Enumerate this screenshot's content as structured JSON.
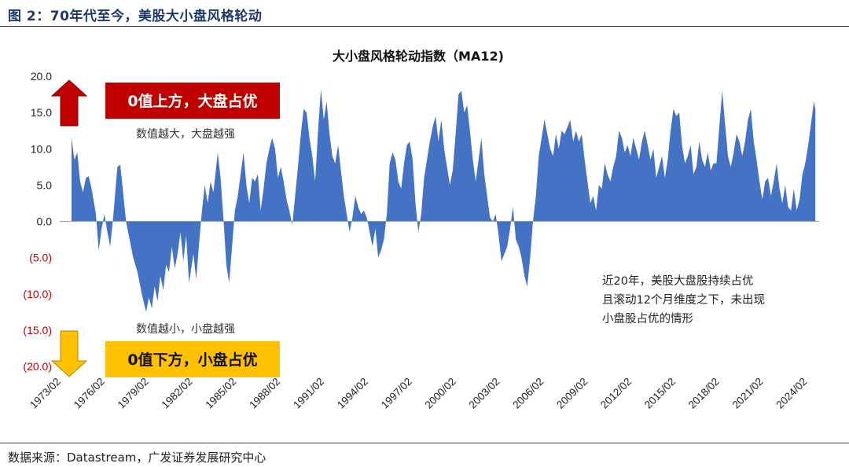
{
  "figure_title": "图 2：70年代至今，美股大小盘风格轮动",
  "source": "数据来源：Datastream，广发证券发展研究中心",
  "colors": {
    "fill": "#4472c4",
    "up_box": "#c00000",
    "down_box": "#ffc000",
    "up_arrow": "#c00000",
    "down_arrow": "#ffc000",
    "neg_tick": "#c00000"
  },
  "chart_data": {
    "type": "area",
    "title": "大小盘风格轮动指数（MA12)",
    "xlabel": "",
    "ylabel": "",
    "ylim": [
      -20,
      20
    ],
    "y_ticks": [
      "20.0",
      "15.0",
      "10.0",
      "5.0",
      "0.0",
      "(5.0)",
      "(10.0)",
      "(15.0)",
      "(20.0)"
    ],
    "x_tick_labels": [
      "1973/02",
      "1976/02",
      "1979/02",
      "1982/02",
      "1985/02",
      "1988/02",
      "1991/02",
      "1994/02",
      "1997/02",
      "2000/02",
      "2003/02",
      "2006/02",
      "2009/02",
      "2012/02",
      "2015/02",
      "2018/02",
      "2021/02",
      "2024/02"
    ],
    "x_range": [
      1973.1,
      2025.1
    ],
    "grid": false,
    "series": [
      {
        "values": [
          [
            1973.1,
            11.5
          ],
          [
            1973.3,
            8.5
          ],
          [
            1973.5,
            9.5
          ],
          [
            1973.7,
            5.5
          ],
          [
            1973.9,
            4.0
          ],
          [
            1974.1,
            6.0
          ],
          [
            1974.3,
            6.2
          ],
          [
            1974.5,
            4.5
          ],
          [
            1974.8,
            1.0
          ],
          [
            1975.0,
            -4.0
          ],
          [
            1975.2,
            -1.0
          ],
          [
            1975.4,
            1.0
          ],
          [
            1975.6,
            -1.5
          ],
          [
            1975.8,
            -3.5
          ],
          [
            1976.0,
            0.5
          ],
          [
            1976.3,
            7.5
          ],
          [
            1976.5,
            7.8
          ],
          [
            1976.7,
            4.0
          ],
          [
            1976.9,
            0.0
          ],
          [
            1977.1,
            -2.0
          ],
          [
            1977.4,
            -5.0
          ],
          [
            1977.7,
            -7.0
          ],
          [
            1978.0,
            -10.0
          ],
          [
            1978.3,
            -12.5
          ],
          [
            1978.5,
            -10.5
          ],
          [
            1978.7,
            -12.0
          ],
          [
            1978.9,
            -9.0
          ],
          [
            1979.1,
            -11.0
          ],
          [
            1979.3,
            -7.5
          ],
          [
            1979.5,
            -9.5
          ],
          [
            1979.7,
            -6.0
          ],
          [
            1979.9,
            -7.0
          ],
          [
            1980.1,
            -3.5
          ],
          [
            1980.3,
            -6.5
          ],
          [
            1980.5,
            -4.5
          ],
          [
            1980.7,
            -1.5
          ],
          [
            1980.9,
            -5.5
          ],
          [
            1981.1,
            -2.0
          ],
          [
            1981.3,
            -8.5
          ],
          [
            1981.6,
            -4.5
          ],
          [
            1981.8,
            -8.0
          ],
          [
            1982.0,
            -3.0
          ],
          [
            1982.2,
            1.5
          ],
          [
            1982.4,
            5.0
          ],
          [
            1982.6,
            2.5
          ],
          [
            1982.8,
            5.5
          ],
          [
            1983.0,
            4.0
          ],
          [
            1983.3,
            9.5
          ],
          [
            1983.5,
            6.0
          ],
          [
            1983.7,
            0.5
          ],
          [
            1983.9,
            -6.0
          ],
          [
            1984.1,
            -8.5
          ],
          [
            1984.3,
            -3.5
          ],
          [
            1984.5,
            1.5
          ],
          [
            1984.7,
            3.5
          ],
          [
            1984.9,
            6.5
          ],
          [
            1985.1,
            9.5
          ],
          [
            1985.3,
            5.0
          ],
          [
            1985.5,
            2.5
          ],
          [
            1985.7,
            6.0
          ],
          [
            1985.9,
            5.5
          ],
          [
            1986.1,
            6.5
          ],
          [
            1986.3,
            1.5
          ],
          [
            1986.5,
            4.5
          ],
          [
            1986.7,
            8.0
          ],
          [
            1986.9,
            10.0
          ],
          [
            1987.1,
            11.5
          ],
          [
            1987.3,
            10.0
          ],
          [
            1987.5,
            6.0
          ],
          [
            1987.7,
            7.5
          ],
          [
            1987.9,
            5.5
          ],
          [
            1988.1,
            3.0
          ],
          [
            1988.3,
            1.5
          ],
          [
            1988.5,
            -0.5
          ],
          [
            1988.7,
            3.5
          ],
          [
            1988.9,
            7.5
          ],
          [
            1989.1,
            12.0
          ],
          [
            1989.3,
            15.5
          ],
          [
            1989.5,
            15.0
          ],
          [
            1989.7,
            11.5
          ],
          [
            1989.9,
            9.0
          ],
          [
            1990.1,
            5.5
          ],
          [
            1990.3,
            12.5
          ],
          [
            1990.5,
            18.2
          ],
          [
            1990.7,
            14.0
          ],
          [
            1990.9,
            16.5
          ],
          [
            1991.1,
            12.0
          ],
          [
            1991.3,
            9.0
          ],
          [
            1991.5,
            8.0
          ],
          [
            1991.7,
            10.5
          ],
          [
            1991.9,
            7.0
          ],
          [
            1992.1,
            3.5
          ],
          [
            1992.3,
            1.0
          ],
          [
            1992.5,
            -1.5
          ],
          [
            1992.7,
            0.5
          ],
          [
            1992.9,
            3.5
          ],
          [
            1993.1,
            2.0
          ],
          [
            1993.3,
            1.0
          ],
          [
            1993.5,
            1.5
          ],
          [
            1993.7,
            0.5
          ],
          [
            1993.9,
            -1.5
          ],
          [
            1994.1,
            -3.5
          ],
          [
            1994.3,
            -1.0
          ],
          [
            1994.5,
            -5.0
          ],
          [
            1994.7,
            -4.0
          ],
          [
            1994.9,
            -2.5
          ],
          [
            1995.1,
            1.0
          ],
          [
            1995.3,
            8.0
          ],
          [
            1995.5,
            9.5
          ],
          [
            1995.7,
            8.5
          ],
          [
            1995.9,
            5.5
          ],
          [
            1996.1,
            4.5
          ],
          [
            1996.3,
            8.0
          ],
          [
            1996.5,
            10.5
          ],
          [
            1996.7,
            11.0
          ],
          [
            1996.9,
            8.5
          ],
          [
            1997.1,
            2.5
          ],
          [
            1997.3,
            -1.5
          ],
          [
            1997.5,
            1.0
          ],
          [
            1997.7,
            6.0
          ],
          [
            1997.9,
            8.5
          ],
          [
            1998.1,
            11.0
          ],
          [
            1998.3,
            13.0
          ],
          [
            1998.5,
            14.5
          ],
          [
            1998.7,
            11.0
          ],
          [
            1998.9,
            14.0
          ],
          [
            1999.1,
            10.0
          ],
          [
            1999.3,
            7.5
          ],
          [
            1999.5,
            5.0
          ],
          [
            1999.7,
            7.0
          ],
          [
            1999.9,
            12.0
          ],
          [
            2000.1,
            17.5
          ],
          [
            2000.3,
            18.0
          ],
          [
            2000.5,
            15.0
          ],
          [
            2000.7,
            16.0
          ],
          [
            2000.9,
            12.5
          ],
          [
            2001.1,
            8.5
          ],
          [
            2001.3,
            5.5
          ],
          [
            2001.5,
            8.5
          ],
          [
            2001.7,
            11.5
          ],
          [
            2001.9,
            6.5
          ],
          [
            2002.1,
            3.5
          ],
          [
            2002.3,
            0.5
          ],
          [
            2002.5,
            0.0
          ],
          [
            2002.7,
            1.0
          ],
          [
            2002.9,
            -2.0
          ],
          [
            2003.1,
            -5.5
          ],
          [
            2003.3,
            -4.5
          ],
          [
            2003.5,
            -3.5
          ],
          [
            2003.7,
            -1.0
          ],
          [
            2003.9,
            2.0
          ],
          [
            2004.1,
            -2.5
          ],
          [
            2004.3,
            -3.5
          ],
          [
            2004.5,
            -5.0
          ],
          [
            2004.7,
            -7.5
          ],
          [
            2004.9,
            -9.0
          ],
          [
            2005.1,
            -5.0
          ],
          [
            2005.3,
            0.0
          ],
          [
            2005.5,
            3.5
          ],
          [
            2005.7,
            9.0
          ],
          [
            2005.9,
            11.5
          ],
          [
            2006.1,
            14.0
          ],
          [
            2006.3,
            12.0
          ],
          [
            2006.5,
            10.0
          ],
          [
            2006.7,
            9.0
          ],
          [
            2006.9,
            12.0
          ],
          [
            2007.1,
            10.0
          ],
          [
            2007.3,
            12.5
          ],
          [
            2007.5,
            12.0
          ],
          [
            2007.7,
            13.0
          ],
          [
            2007.9,
            14.0
          ],
          [
            2008.1,
            11.0
          ],
          [
            2008.3,
            12.5
          ],
          [
            2008.5,
            11.0
          ],
          [
            2008.7,
            12.0
          ],
          [
            2008.9,
            8.5
          ],
          [
            2009.1,
            5.5
          ],
          [
            2009.3,
            2.5
          ],
          [
            2009.5,
            3.5
          ],
          [
            2009.7,
            1.5
          ],
          [
            2009.9,
            5.0
          ],
          [
            2010.1,
            4.5
          ],
          [
            2010.3,
            8.0
          ],
          [
            2010.5,
            6.5
          ],
          [
            2010.7,
            5.5
          ],
          [
            2010.9,
            7.5
          ],
          [
            2011.1,
            9.0
          ],
          [
            2011.3,
            12.5
          ],
          [
            2011.5,
            11.5
          ],
          [
            2011.7,
            9.5
          ],
          [
            2011.9,
            10.5
          ],
          [
            2012.1,
            9.0
          ],
          [
            2012.3,
            11.5
          ],
          [
            2012.5,
            10.0
          ],
          [
            2012.7,
            8.5
          ],
          [
            2012.9,
            11.0
          ],
          [
            2013.1,
            12.5
          ],
          [
            2013.3,
            10.5
          ],
          [
            2013.5,
            8.5
          ],
          [
            2013.7,
            10.0
          ],
          [
            2013.9,
            6.0
          ],
          [
            2014.1,
            7.5
          ],
          [
            2014.3,
            9.0
          ],
          [
            2014.5,
            6.0
          ],
          [
            2014.7,
            8.5
          ],
          [
            2014.9,
            12.5
          ],
          [
            2015.1,
            15.5
          ],
          [
            2015.3,
            14.5
          ],
          [
            2015.5,
            15.0
          ],
          [
            2015.7,
            10.5
          ],
          [
            2015.9,
            8.0
          ],
          [
            2016.1,
            9.0
          ],
          [
            2016.3,
            10.5
          ],
          [
            2016.5,
            6.5
          ],
          [
            2016.7,
            7.5
          ],
          [
            2016.9,
            11.0
          ],
          [
            2017.1,
            8.5
          ],
          [
            2017.3,
            7.5
          ],
          [
            2017.5,
            9.5
          ],
          [
            2017.7,
            7.0
          ],
          [
            2017.9,
            8.0
          ],
          [
            2018.1,
            8.0
          ],
          [
            2018.3,
            13.0
          ],
          [
            2018.5,
            18.0
          ],
          [
            2018.7,
            13.5
          ],
          [
            2018.9,
            9.0
          ],
          [
            2019.1,
            7.5
          ],
          [
            2019.3,
            9.5
          ],
          [
            2019.5,
            12.0
          ],
          [
            2019.7,
            11.0
          ],
          [
            2019.9,
            9.0
          ],
          [
            2020.1,
            11.0
          ],
          [
            2020.3,
            14.0
          ],
          [
            2020.5,
            15.5
          ],
          [
            2020.7,
            11.0
          ],
          [
            2020.9,
            8.5
          ],
          [
            2021.1,
            5.5
          ],
          [
            2021.3,
            3.0
          ],
          [
            2021.5,
            5.5
          ],
          [
            2021.7,
            6.0
          ],
          [
            2021.9,
            3.5
          ],
          [
            2022.1,
            5.5
          ],
          [
            2022.3,
            8.0
          ],
          [
            2022.5,
            4.5
          ],
          [
            2022.7,
            2.5
          ],
          [
            2022.9,
            5.0
          ],
          [
            2023.1,
            2.0
          ],
          [
            2023.3,
            1.5
          ],
          [
            2023.5,
            4.5
          ],
          [
            2023.7,
            1.5
          ],
          [
            2023.9,
            3.0
          ],
          [
            2024.1,
            6.5
          ],
          [
            2024.3,
            8.0
          ],
          [
            2024.5,
            10.5
          ],
          [
            2024.7,
            13.5
          ],
          [
            2024.9,
            16.5
          ],
          [
            2025.0,
            15.5
          ]
        ]
      }
    ],
    "annotations": {
      "up_box": "0值上方，大盘占优",
      "up_note": "数值越大，大盘越强",
      "down_box": "0值下方，小盘占优",
      "down_note": "数值越小，小盘越强",
      "note_line1": "近20年，美股大盘股持续占优",
      "note_line2": "且滚动12个月维度之下，未出现",
      "note_line3": "小盘股占优的情形"
    }
  }
}
